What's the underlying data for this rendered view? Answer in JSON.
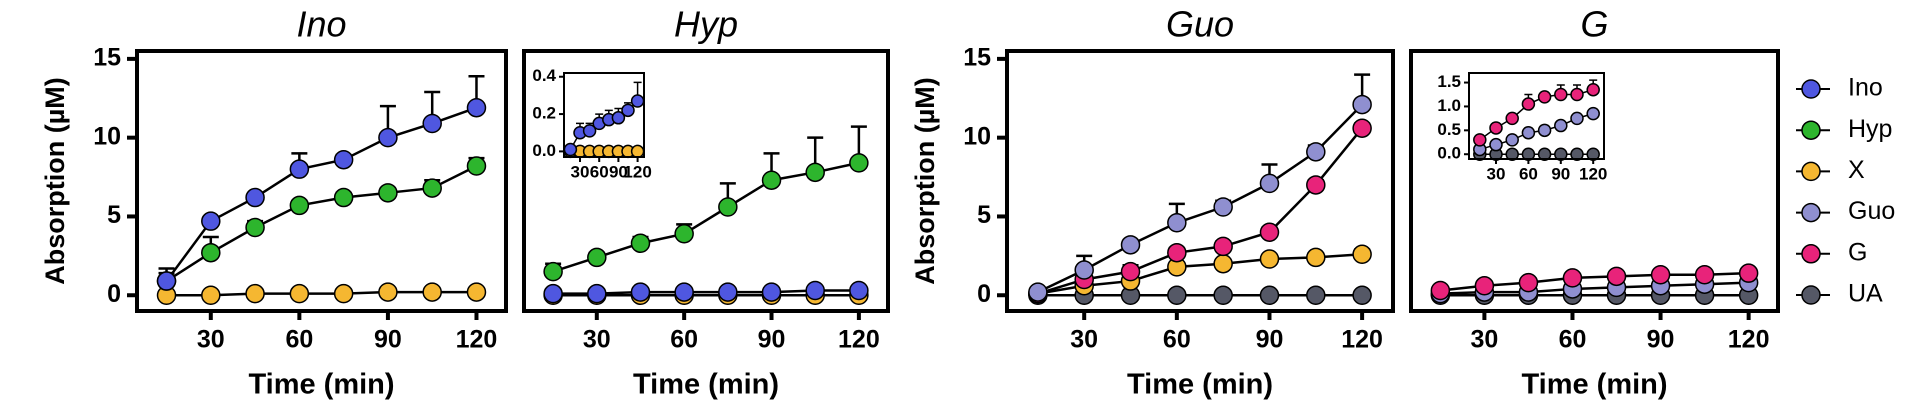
{
  "chart_data": [
    {
      "type": "line",
      "title": "Ino",
      "x_label": "Time (min)",
      "y_label": "Absorption (µM)",
      "x": [
        15,
        30,
        45,
        60,
        75,
        90,
        105,
        120
      ],
      "xlim": [
        5,
        130
      ],
      "xticks": [
        30,
        60,
        90,
        120
      ],
      "ylim": [
        -1,
        15.5
      ],
      "yticks": [
        0,
        5,
        10,
        15
      ],
      "series": [
        {
          "name": "X",
          "color": "#f5b731",
          "values": [
            0,
            0,
            0.1,
            0.1,
            0.1,
            0.2,
            0.2,
            0.2
          ]
        },
        {
          "name": "Hyp",
          "color": "#2db52d",
          "values": [
            0.9,
            2.7,
            4.3,
            5.7,
            6.2,
            6.5,
            6.8,
            8.2
          ],
          "errors": [
            0.5,
            1.0,
            0.4,
            0.3,
            0.3,
            0.3,
            0.5,
            0.5
          ]
        },
        {
          "name": "Ino",
          "color": "#4f57e0",
          "values": [
            0.9,
            4.7,
            6.2,
            8.0,
            8.6,
            10.0,
            10.9,
            11.9
          ],
          "errors": [
            0.8,
            0.2,
            0.2,
            1.0,
            0.3,
            2.0,
            2.0,
            2.0
          ]
        }
      ]
    },
    {
      "type": "line",
      "title": "Hyp",
      "x_label": "Time (min)",
      "x": [
        15,
        30,
        45,
        60,
        75,
        90,
        105,
        120
      ],
      "xlim": [
        5,
        130
      ],
      "xticks": [
        30,
        60,
        90,
        120
      ],
      "ylim": [
        -1,
        15.5
      ],
      "series": [
        {
          "name": "X",
          "color": "#f5b731",
          "values": [
            0,
            0,
            0,
            0,
            0,
            0,
            0,
            0
          ]
        },
        {
          "name": "Ino",
          "color": "#4f57e0",
          "values": [
            0.1,
            0.1,
            0.2,
            0.2,
            0.2,
            0.2,
            0.3,
            0.3
          ]
        },
        {
          "name": "Hyp",
          "color": "#2db52d",
          "values": [
            1.5,
            2.4,
            3.3,
            3.9,
            5.6,
            7.3,
            7.8,
            8.4
          ],
          "errors": [
            0.5,
            0.3,
            0.4,
            0.6,
            1.5,
            1.7,
            2.2,
            2.3
          ]
        }
      ]
    },
    {
      "type": "line",
      "title": "Guo",
      "x_label": "Time (min)",
      "y_label": "Absorption (µM)",
      "x": [
        15,
        30,
        45,
        60,
        75,
        90,
        105,
        120
      ],
      "xlim": [
        5,
        130
      ],
      "xticks": [
        30,
        60,
        90,
        120
      ],
      "ylim": [
        -1,
        15.5
      ],
      "yticks": [
        0,
        5,
        10,
        15
      ],
      "series": [
        {
          "name": "UA",
          "color": "#555866",
          "values": [
            0,
            0,
            0,
            0,
            0,
            0,
            0,
            0
          ]
        },
        {
          "name": "X",
          "color": "#f5b731",
          "values": [
            0.1,
            0.6,
            0.9,
            1.8,
            2.0,
            2.3,
            2.4,
            2.6
          ],
          "errors": [
            0.1,
            0.2,
            0.2,
            0.2,
            0.2,
            0.2,
            0.2,
            0.3
          ]
        },
        {
          "name": "G",
          "color": "#e8237a",
          "values": [
            0.1,
            1.0,
            1.5,
            2.7,
            3.1,
            4.0,
            7.0,
            10.6
          ],
          "errors": [
            0.1,
            0.3,
            0.4,
            0.3,
            0.3,
            0.3,
            0.3,
            0.3
          ]
        },
        {
          "name": "Guo",
          "color": "#8f8fd0",
          "values": [
            0.2,
            1.6,
            3.2,
            4.6,
            5.6,
            7.1,
            9.1,
            12.1
          ],
          "errors": [
            0.1,
            0.9,
            0.3,
            1.2,
            0.4,
            1.2,
            0.4,
            1.9
          ]
        }
      ]
    },
    {
      "type": "line",
      "title": "G",
      "x_label": "Time (min)",
      "x": [
        15,
        30,
        45,
        60,
        75,
        90,
        105,
        120
      ],
      "xlim": [
        5,
        130
      ],
      "xticks": [
        30,
        60,
        90,
        120
      ],
      "ylim": [
        -1,
        15.5
      ],
      "series": [
        {
          "name": "UA",
          "color": "#555866",
          "values": [
            0,
            0,
            0,
            0,
            0,
            0,
            0,
            0
          ]
        },
        {
          "name": "Guo",
          "color": "#8f8fd0",
          "values": [
            0.1,
            0.2,
            0.2,
            0.4,
            0.5,
            0.6,
            0.7,
            0.8
          ]
        },
        {
          "name": "G",
          "color": "#e8237a",
          "values": [
            0.3,
            0.6,
            0.8,
            1.1,
            1.2,
            1.3,
            1.3,
            1.4
          ]
        }
      ]
    },
    {
      "type": "line",
      "x": [
        15,
        30,
        45,
        60,
        75,
        90,
        105,
        120
      ],
      "xlim": [
        5,
        130
      ],
      "xticks": [
        30,
        60,
        90,
        120
      ],
      "ylim": [
        -0.03,
        0.42
      ],
      "yticks": [
        {
          "value": 0,
          "label": "0.0"
        },
        {
          "value": 0.2,
          "label": "0.2"
        },
        {
          "value": 0.4,
          "label": "0.4"
        }
      ],
      "series": [
        {
          "name": "X",
          "color": "#f5b731",
          "values": [
            0,
            0,
            0,
            0,
            0,
            0,
            0,
            0
          ]
        },
        {
          "name": "Ino",
          "color": "#4f57e0",
          "values": [
            0.01,
            0.1,
            0.11,
            0.15,
            0.17,
            0.18,
            0.22,
            0.27
          ],
          "errors": [
            0.01,
            0.05,
            0.04,
            0.05,
            0.05,
            0.05,
            0.04,
            0.1
          ]
        }
      ]
    },
    {
      "type": "line",
      "x": [
        15,
        30,
        45,
        60,
        75,
        90,
        105,
        120
      ],
      "xlim": [
        5,
        130
      ],
      "xticks": [
        30,
        60,
        90,
        120
      ],
      "ylim": [
        -0.1,
        1.7
      ],
      "yticks": [
        {
          "value": 0,
          "label": "0.0"
        },
        {
          "value": 0.5,
          "label": "0.5"
        },
        {
          "value": 1,
          "label": "1.0"
        },
        {
          "value": 1.5,
          "label": "1.5"
        }
      ],
      "series": [
        {
          "name": "UA",
          "color": "#555866",
          "values": [
            0,
            0,
            0,
            0,
            0,
            0,
            0,
            0
          ]
        },
        {
          "name": "Guo",
          "color": "#8f8fd0",
          "values": [
            0.1,
            0.2,
            0.3,
            0.45,
            0.5,
            0.6,
            0.75,
            0.85
          ],
          "errors": [
            0.1,
            0.1,
            0.1,
            0.1,
            0.1,
            0.1,
            0.1,
            0.1
          ]
        },
        {
          "name": "G",
          "color": "#e8237a",
          "values": [
            0.3,
            0.55,
            0.75,
            1.05,
            1.2,
            1.25,
            1.25,
            1.35
          ],
          "errors": [
            0.1,
            0.1,
            0.1,
            0.2,
            0.1,
            0.2,
            0.2,
            0.2
          ]
        }
      ]
    }
  ],
  "legend": [
    {
      "name": "Ino",
      "color": "#4f57e0"
    },
    {
      "name": "Hyp",
      "color": "#2db52d"
    },
    {
      "name": "X",
      "color": "#f5b731"
    },
    {
      "name": "Guo",
      "color": "#8f8fd0"
    },
    {
      "name": "G",
      "color": "#e8237a"
    },
    {
      "name": "UA",
      "color": "#555866"
    }
  ]
}
